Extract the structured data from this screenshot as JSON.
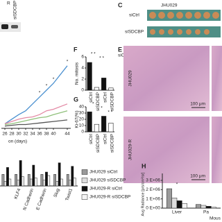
{
  "figure": {
    "blot": {
      "lane_mark": "R",
      "lane_label": "siSDCBP"
    },
    "panel_c": {
      "label": "C",
      "title": "JHU029",
      "rows": [
        "siCtrl",
        "siSDCBP"
      ]
    },
    "panel_e": {
      "label": "E",
      "rows": [
        "JHU029",
        "JHU029-R"
      ],
      "scale_bars": [
        "100 μm",
        "100 μm"
      ]
    }
  },
  "chart_data": [
    {
      "type": "line",
      "xlabel": "on (days)",
      "x": [
        26,
        28,
        30,
        32,
        34,
        36,
        38,
        40,
        44
      ],
      "xlim": [
        25,
        45
      ],
      "xticks": [
        26,
        28,
        30,
        32,
        34,
        36,
        38,
        40,
        44
      ],
      "ylim": [
        0,
        100
      ],
      "series": [
        {
          "color": "#4a90d0",
          "values": [
            6,
            12,
            18,
            23,
            32,
            41,
            50,
            59,
            82
          ]
        },
        {
          "color": "#e38aa5",
          "values": [
            6,
            9,
            12,
            14,
            15,
            18,
            23,
            25,
            32
          ]
        },
        {
          "color": "#8fc07a",
          "values": [
            5,
            6,
            8,
            10,
            12,
            14,
            15,
            18,
            23
          ]
        },
        {
          "color": "#555555",
          "values": [
            3,
            4,
            5,
            5,
            6,
            7,
            8,
            9,
            11
          ]
        }
      ],
      "annotations": [
        "*",
        "*",
        "*",
        "*"
      ]
    },
    {
      "type": "bar",
      "label": "F",
      "ylabel": "No. mitosis",
      "categories": [
        "siCtrl",
        "siSDCBP",
        "siCtrl",
        "siSDCBP"
      ],
      "values": [
        5,
        0.5,
        2.2,
        0.4
      ],
      "colors": [
        "#111111",
        "#ffffff",
        "#111111",
        "#ffffff"
      ],
      "ylim": [
        0,
        6
      ],
      "yticks": [
        0,
        2,
        4,
        6
      ],
      "annotations": [
        "* *",
        "* *"
      ]
    },
    {
      "type": "bar",
      "label": "G",
      "ylabel": "Ki-67(%)",
      "categories": [
        "siCtrl",
        "siSDCBP",
        "siCtrl",
        "siSDCBP"
      ],
      "values": [
        32,
        12,
        25,
        14
      ],
      "colors": [
        "#111111",
        "#ffffff",
        "#111111",
        "#ffffff"
      ],
      "ylim": [
        0,
        40
      ],
      "yticks": [
        0,
        10,
        20,
        30,
        40
      ],
      "annotations": [
        "*",
        "*",
        "* *"
      ]
    },
    {
      "type": "grouped",
      "categories": [
        null,
        "KLF4",
        "N Cadherin",
        "E Cadherin",
        "Slug",
        "Twist1"
      ],
      "ylim": [
        0,
        3
      ],
      "series": [
        {
          "name": "JHU029 siCtrl",
          "color": "#9a9a9a",
          "values": [
            1,
            1,
            1,
            1,
            1,
            1
          ]
        },
        {
          "name": "JHU029 siSDCBP",
          "color": "#dddddd",
          "values": [
            0.4,
            0.5,
            0.6,
            0.5,
            0.4,
            0.5
          ]
        },
        {
          "name": "JHU029-R siCtrl",
          "color": "#111111",
          "values": [
            1.6,
            2.2,
            1.8,
            1.2,
            2.0,
            1.7
          ]
        },
        {
          "name": "JHU029-R siSDCBP",
          "color": "#f4f4f4",
          "values": [
            0.6,
            0.8,
            0.7,
            0.9,
            0.6,
            0.7
          ]
        }
      ]
    },
    {
      "type": "grouped",
      "label": "H",
      "ylabel": "Avg Radiance [p/s/cm²/sr]",
      "xlabel": "Mous",
      "categories": [
        "Liver",
        "Pa"
      ],
      "ylim": [
        0,
        3000000
      ],
      "yticks": [
        {
          "value": 0,
          "label": "0 E+00"
        },
        {
          "value": 1000000,
          "label": "1 E+06"
        },
        {
          "value": 2000000,
          "label": "2 E+06"
        },
        {
          "value": 3000000,
          "label": "3 E+06"
        }
      ],
      "series": [
        {
          "color": "#9a9a9a",
          "values": [
            2100000,
            400000
          ]
        },
        {
          "color": "#dddddd",
          "values": [
            1100000,
            300000
          ]
        },
        {
          "color": "#111111",
          "values": [
            800000,
            200000
          ]
        },
        {
          "color": "#f4f4f4",
          "values": [
            500000,
            100000
          ]
        }
      ],
      "annotations": [
        "*"
      ]
    }
  ]
}
